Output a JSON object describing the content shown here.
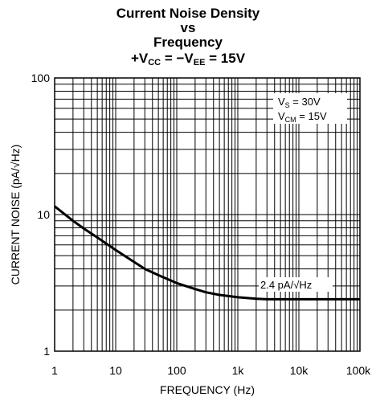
{
  "chart_data": {
    "type": "line",
    "title": {
      "line1": "Current Noise Density",
      "line2": "vs",
      "line3": "Frequency",
      "cond": {
        "p1": "+V",
        "s1": "CC",
        "p2": " = −V",
        "s2": "EE",
        "p3": " = 15V"
      }
    },
    "xlabel": "FREQUENCY (Hz)",
    "ylabel": "CURRENT NOISE (pA/√Hz)",
    "xscale": "log",
    "yscale": "log",
    "xlim": [
      1,
      100000
    ],
    "ylim": [
      1,
      100
    ],
    "x_tick_labels": [
      "1",
      "10",
      "100",
      "1k",
      "10k",
      "100k"
    ],
    "y_tick_labels": [
      "1",
      "10",
      "100"
    ],
    "grid": true,
    "conditions": {
      "vs": {
        "p": "V",
        "s": "S",
        "v": " = 30V"
      },
      "vcm": {
        "p": "V",
        "s": "CM",
        "v": " = 15V"
      }
    },
    "annotation": "2.4 pA/√Hz",
    "series": [
      {
        "x": [
          1,
          2,
          3,
          5,
          10,
          20,
          30,
          50,
          100,
          200,
          300,
          500,
          1000,
          2000,
          3000,
          5000,
          10000,
          20000,
          50000,
          100000
        ],
        "y": [
          11.5,
          9.0,
          7.9,
          6.8,
          5.5,
          4.5,
          4.0,
          3.6,
          3.15,
          2.85,
          2.7,
          2.58,
          2.48,
          2.42,
          2.4,
          2.4,
          2.4,
          2.4,
          2.4,
          2.4
        ]
      }
    ]
  }
}
